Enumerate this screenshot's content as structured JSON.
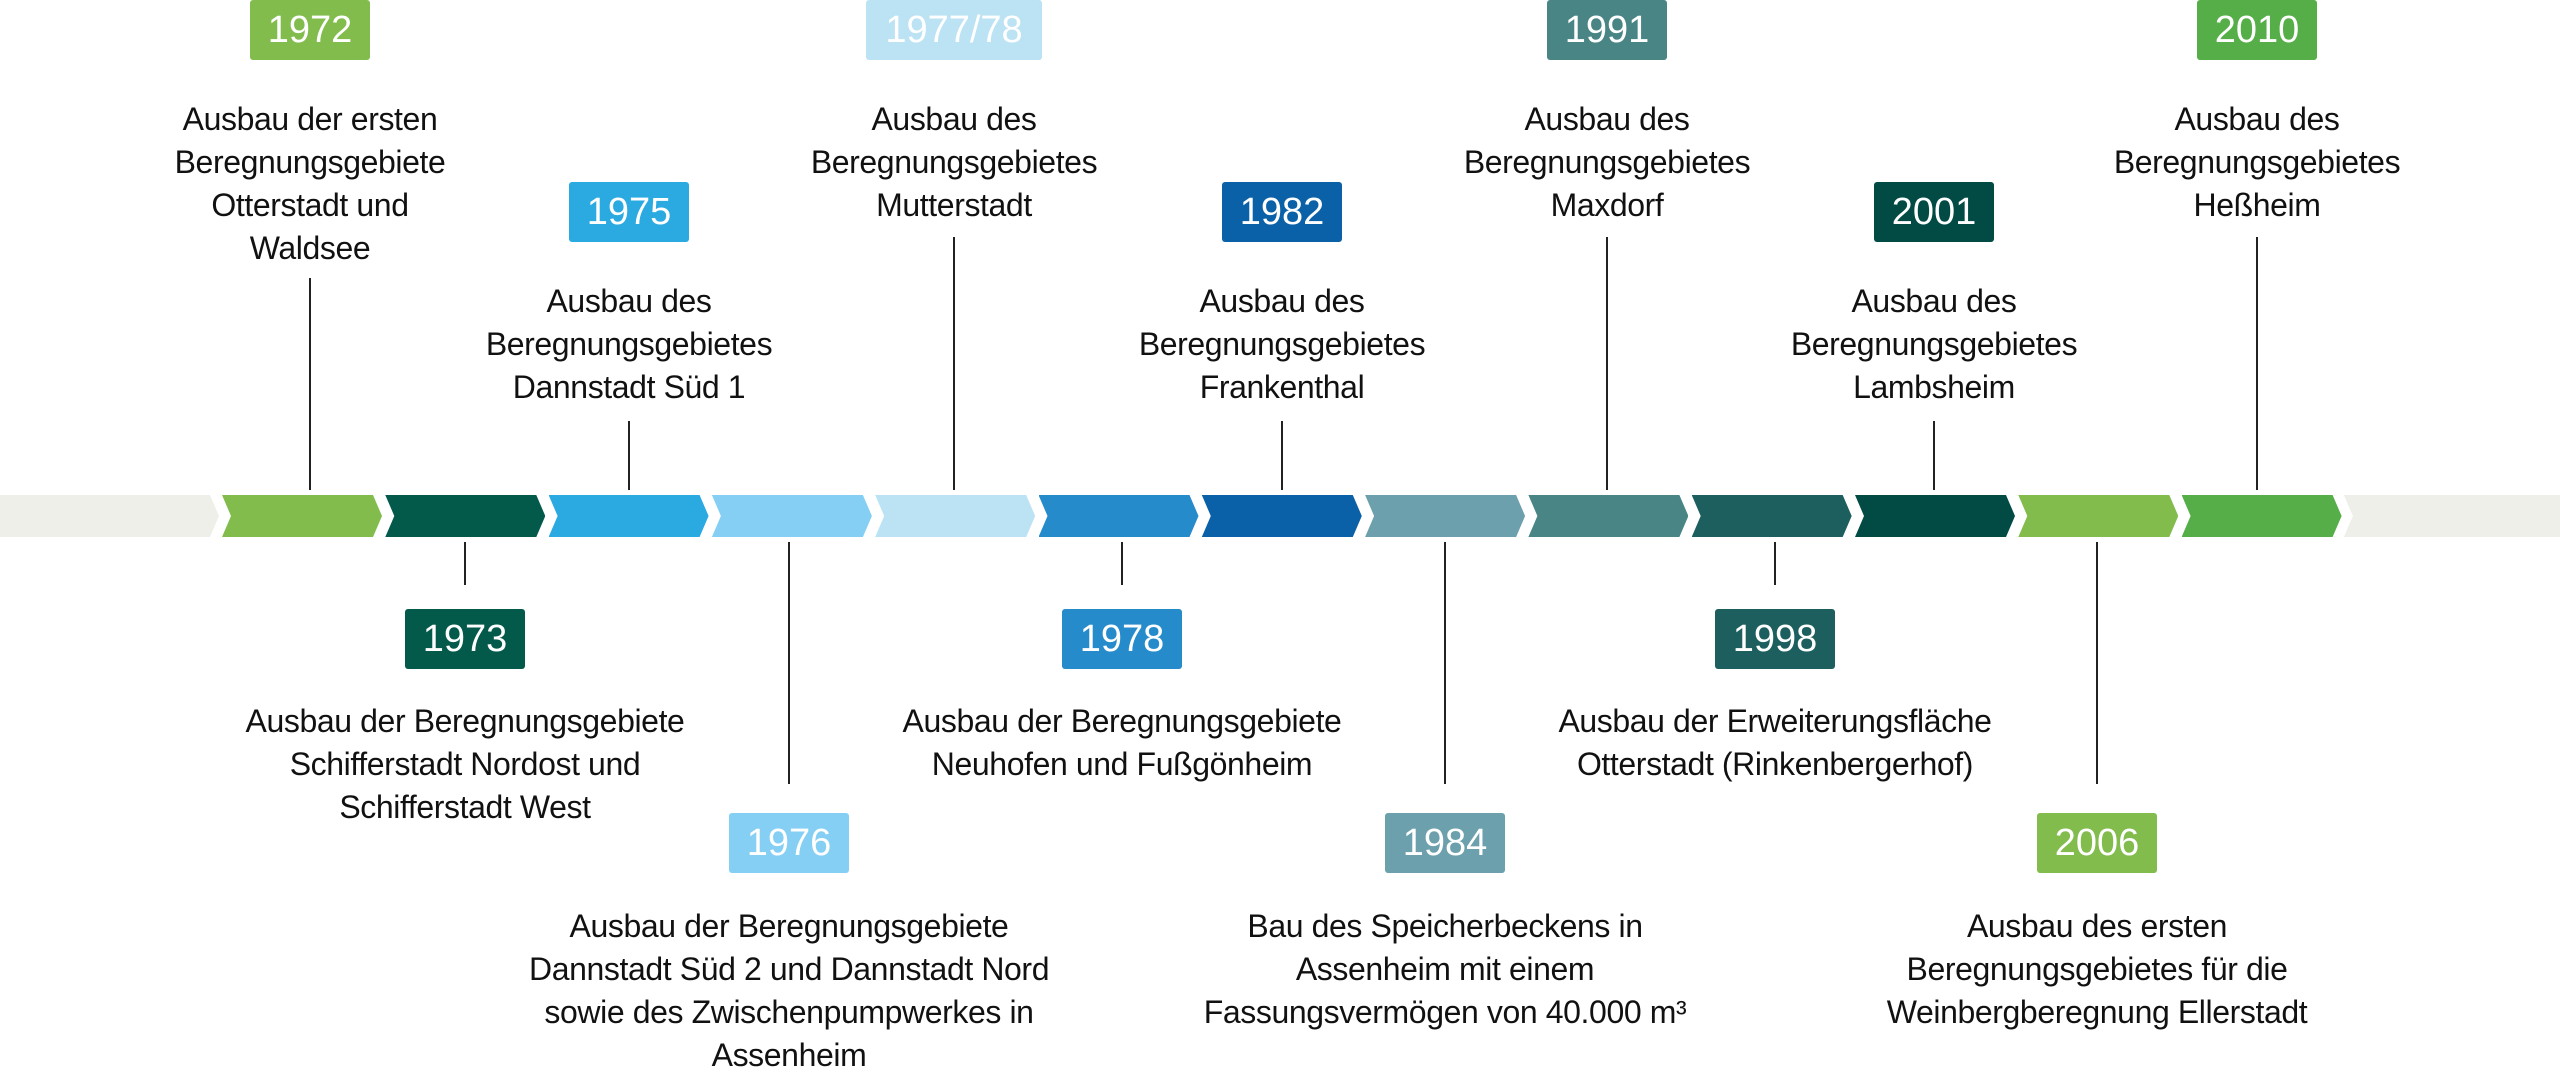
{
  "track_color": "#efefe9",
  "segment_colors": [
    "#82bc4c",
    "#03594a",
    "#2baae2",
    "#84cff3",
    "#bce3f4",
    "#268bcb",
    "#0b61a8",
    "#6ba0ac",
    "#4a8586",
    "#1d5f5f",
    "#024b45",
    "#82bc4c",
    "#55ae47"
  ],
  "events": [
    {
      "year": "1972",
      "color": "#82bc4c",
      "position": "top",
      "text": "Ausbau der ersten\nBeregnungsgebiete\nOtterstadt und\nWaldsee"
    },
    {
      "year": "1973",
      "color": "#03594a",
      "position": "bottom",
      "text": "Ausbau der Beregnungsgebiete\nSchifferstadt Nordost und\nSchifferstadt West"
    },
    {
      "year": "1975",
      "color": "#2baae2",
      "position": "top",
      "text": "Ausbau des\nBeregnungsgebietes\nDannstadt Süd 1"
    },
    {
      "year": "1976",
      "color": "#84cff3",
      "position": "bottom",
      "text": "Ausbau der Beregnungsgebiete\nDannstadt Süd 2 und Dannstadt Nord\nsowie des Zwischenpumpwerkes in\nAssenheim"
    },
    {
      "year": "1977/78",
      "color": "#bce3f4",
      "position": "top",
      "text": "Ausbau des\nBeregnungsgebietes\nMutterstadt"
    },
    {
      "year": "1978",
      "color": "#268bcb",
      "position": "bottom",
      "text": "Ausbau der Beregnungsgebiete\nNeuhofen und Fußgönheim"
    },
    {
      "year": "1982",
      "color": "#0b61a8",
      "position": "top",
      "text": "Ausbau des\nBeregnungsgebietes\nFrankenthal"
    },
    {
      "year": "1984",
      "color": "#6ba0ac",
      "position": "bottom",
      "text": "Bau des Speicherbeckens in\nAssenheim mit einem\nFassungsvermögen von 40.000 m³"
    },
    {
      "year": "1991",
      "color": "#4a8586",
      "position": "top",
      "text": "Ausbau des\nBeregnungsgebietes\nMaxdorf"
    },
    {
      "year": "1998",
      "color": "#1d5f5f",
      "position": "bottom",
      "text": "Ausbau der Erweiterungsfläche\nOtterstadt (Rinkenbergerhof)"
    },
    {
      "year": "2001",
      "color": "#024b45",
      "position": "top",
      "text": "Ausbau des\nBeregnungsgebietes\nLambsheim"
    },
    {
      "year": "2006",
      "color": "#82bc4c",
      "position": "bottom",
      "text": "Ausbau des ersten\nBeregnungsgebietes für die\nWeinbergberegnung Ellerstadt"
    },
    {
      "year": "2010",
      "color": "#55ae47",
      "position": "top",
      "text": "Ausbau des\nBeregnungsgebietes\nHeßheim"
    }
  ]
}
